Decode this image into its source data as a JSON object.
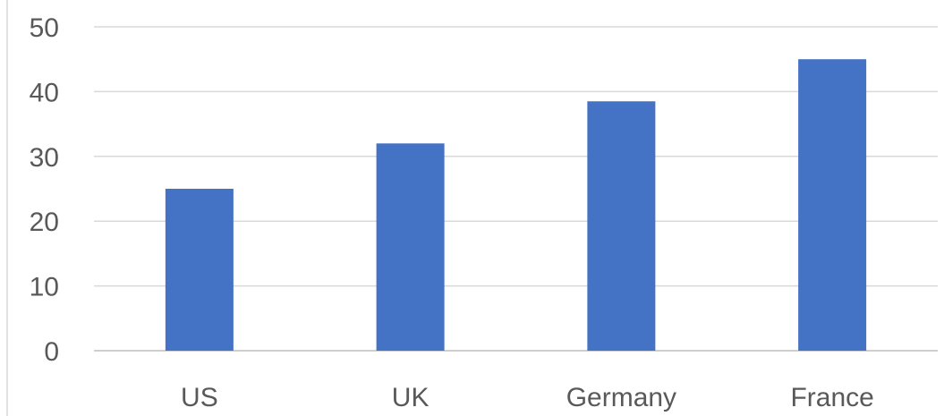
{
  "chart_data": {
    "type": "bar",
    "categories": [
      "US",
      "UK",
      "Germany",
      "France"
    ],
    "values": [
      25,
      32,
      38.5,
      45
    ],
    "title": "",
    "xlabel": "",
    "ylabel": "",
    "ylim": [
      0,
      50
    ],
    "yticks": [
      0,
      10,
      20,
      30,
      40,
      50
    ],
    "grid": true,
    "legend": "none",
    "colors": {
      "bar": "#4472c4",
      "grid": "#d9d9d9",
      "text": "#595959"
    }
  }
}
